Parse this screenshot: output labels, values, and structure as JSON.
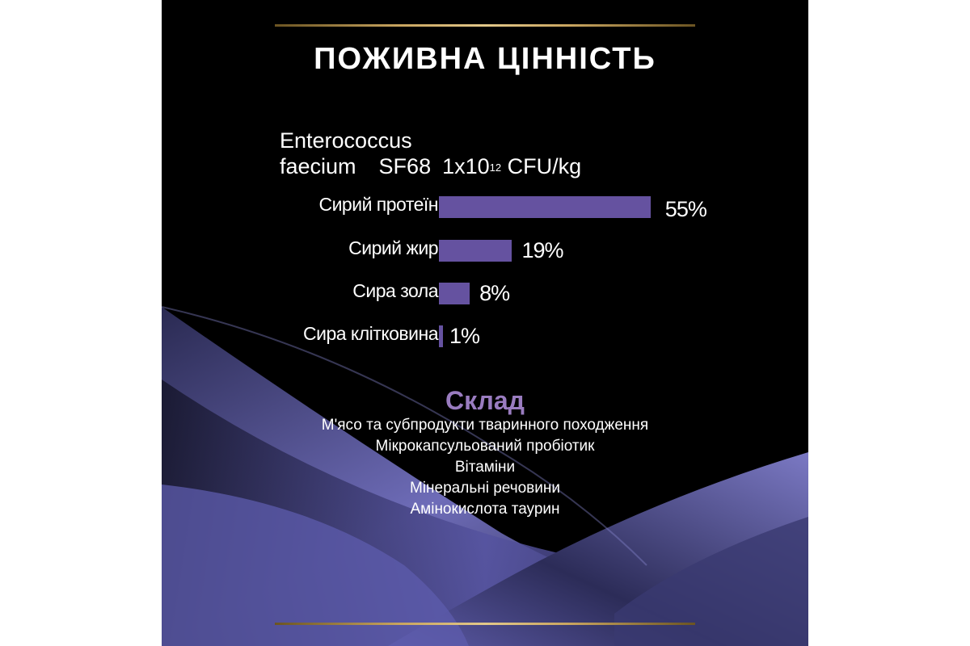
{
  "title": "ПОЖИВНА ЦІННІСТЬ",
  "probiotic": {
    "line1": "Enterococcus",
    "name2": "faecium",
    "strain": "SF68",
    "amount_base": "1x10",
    "amount_exp": "12",
    "unit": "CFU/kg"
  },
  "chart_data": {
    "type": "bar",
    "orientation": "horizontal",
    "categories": [
      "Сирий протеїн",
      "Сирий жир",
      "Сира зола",
      "Сира клітковина"
    ],
    "values": [
      55,
      19,
      8,
      1
    ],
    "labels": [
      "55%",
      "19%",
      "8%",
      "1%"
    ],
    "bar_color": "#6552a0"
  },
  "composition": {
    "heading": "Склад",
    "items": [
      "М'ясо та субпродукти тваринного походження",
      "Мікрокапсульований пробіотик",
      "Вітаміни",
      "Мінеральні речовини",
      "Амінокислота таурин"
    ]
  },
  "colors": {
    "background": "#000000",
    "accent": "#9a7cc0",
    "gold": "#c9a560",
    "wave": "#6a68b0"
  }
}
